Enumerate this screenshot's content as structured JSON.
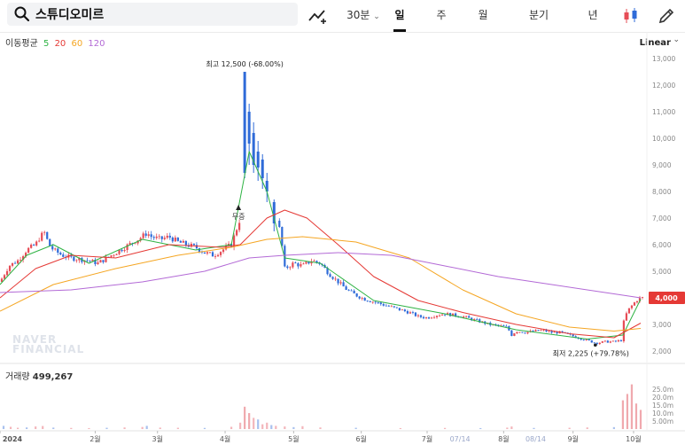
{
  "toolbar": {
    "search_value": "스튜디오미르",
    "interval": "30분",
    "periods": [
      "일",
      "주",
      "월",
      "분기",
      "년"
    ],
    "active_period": "일",
    "icons": [
      "search-icon",
      "drawing-trend-icon",
      "chevron-down-icon",
      "candle-type-icon",
      "pencil-icon"
    ]
  },
  "ma_legend": {
    "label": "이동평균",
    "periods": [
      {
        "label": "5",
        "color": "#2fb344"
      },
      {
        "label": "20",
        "color": "#e53935"
      },
      {
        "label": "60",
        "color": "#f5a623"
      },
      {
        "label": "120",
        "color": "#b36ad6"
      }
    ]
  },
  "scale": {
    "label": "Linear",
    "icon": "chevron-down-icon"
  },
  "volume": {
    "title": "거래량",
    "value": "499,267"
  },
  "watermark": {
    "line1": "NAVER",
    "line2": "FINANCIAL"
  },
  "colors": {
    "up": "#e64c56",
    "down": "#2f6bd8",
    "ma5": "#2fb344",
    "ma20": "#e53935",
    "ma60": "#f5a623",
    "ma120": "#b36ad6",
    "last_price_badge": "#e53935"
  },
  "chart_data": {
    "type": "candlestick",
    "price_axis": {
      "min": 2000,
      "max": 13000,
      "ticks": [
        "13,000",
        "12,000",
        "11,000",
        "10,000",
        "9,000",
        "8,000",
        "7,000",
        "6,000",
        "5,000",
        "4,000",
        "3,000",
        "2,000"
      ]
    },
    "volume_axis": {
      "ticks": [
        "25.0m",
        "20.0m",
        "15.0m",
        "10.0m",
        "5.00m"
      ]
    },
    "x_axis": {
      "labels": [
        "2024",
        "2월",
        "3월",
        "4월",
        "5월",
        "6월",
        "7월",
        "07/14",
        "8월",
        "08/14",
        "9월",
        "10월"
      ]
    },
    "last_price": "4,000",
    "annotations": [
      {
        "text": "최고 12,500 (-68.00%)",
        "value": 12500
      },
      {
        "text": "최저 2,225 (+79.78%)",
        "value": 2225
      },
      {
        "text": "무증"
      }
    ],
    "close_path": [
      [
        0,
        4600
      ],
      [
        10,
        5200
      ],
      [
        20,
        5400
      ],
      [
        30,
        5800
      ],
      [
        40,
        6000
      ],
      [
        45,
        6300
      ],
      [
        50,
        6450
      ],
      [
        55,
        6000
      ],
      [
        60,
        5800
      ],
      [
        70,
        5600
      ],
      [
        80,
        5500
      ],
      [
        90,
        5450
      ],
      [
        100,
        5400
      ],
      [
        110,
        5300
      ],
      [
        120,
        5500
      ],
      [
        130,
        5700
      ],
      [
        140,
        5900
      ],
      [
        150,
        6100
      ],
      [
        160,
        6300
      ],
      [
        165,
        6450
      ],
      [
        170,
        6300
      ],
      [
        180,
        6200
      ],
      [
        190,
        6300
      ],
      [
        200,
        6100
      ],
      [
        210,
        6000
      ],
      [
        220,
        5900
      ],
      [
        230,
        5700
      ],
      [
        240,
        5600
      ],
      [
        250,
        5800
      ],
      [
        260,
        6000
      ],
      [
        265,
        6500
      ],
      [
        270,
        7000
      ],
      [
        275,
        9000
      ],
      [
        278,
        11000
      ],
      [
        280,
        9500
      ],
      [
        285,
        9200
      ],
      [
        290,
        9000
      ],
      [
        295,
        8500
      ],
      [
        300,
        8000
      ],
      [
        305,
        7500
      ],
      [
        310,
        7000
      ],
      [
        315,
        6500
      ],
      [
        320,
        5100
      ],
      [
        330,
        5300
      ],
      [
        340,
        5200
      ],
      [
        350,
        5400
      ],
      [
        360,
        5300
      ],
      [
        370,
        4900
      ],
      [
        380,
        4600
      ],
      [
        390,
        4300
      ],
      [
        400,
        4100
      ],
      [
        410,
        3950
      ],
      [
        420,
        3850
      ],
      [
        430,
        3750
      ],
      [
        440,
        3650
      ],
      [
        450,
        3550
      ],
      [
        460,
        3450
      ],
      [
        470,
        3300
      ],
      [
        480,
        3250
      ],
      [
        490,
        3350
      ],
      [
        500,
        3400
      ],
      [
        510,
        3350
      ],
      [
        520,
        3300
      ],
      [
        530,
        3200
      ],
      [
        540,
        3100
      ],
      [
        550,
        3000
      ],
      [
        560,
        2950
      ],
      [
        570,
        2900
      ],
      [
        575,
        2600
      ],
      [
        580,
        2750
      ],
      [
        590,
        2700
      ],
      [
        600,
        2750
      ],
      [
        610,
        2780
      ],
      [
        620,
        2700
      ],
      [
        630,
        2700
      ],
      [
        640,
        2600
      ],
      [
        650,
        2500
      ],
      [
        660,
        2400
      ],
      [
        670,
        2300
      ],
      [
        680,
        2350
      ],
      [
        690,
        2350
      ],
      [
        698,
        2400
      ],
      [
        700,
        3000
      ],
      [
        705,
        3500
      ],
      [
        710,
        3700
      ],
      [
        715,
        3900
      ],
      [
        720,
        4000
      ]
    ],
    "peak_candles": [
      {
        "day": 275,
        "open": 8700,
        "close": 12500,
        "high": 12500,
        "low": 8500
      },
      {
        "day": 280,
        "open": 11000,
        "close": 9800,
        "high": 11300,
        "low": 9000
      },
      {
        "day": 285,
        "open": 10200,
        "close": 9000,
        "high": 10600,
        "low": 8700
      },
      {
        "day": 290,
        "open": 9500,
        "close": 8900,
        "high": 9900,
        "low": 8400
      },
      {
        "day": 295,
        "open": 9200,
        "close": 8500,
        "high": 9400,
        "low": 8100
      },
      {
        "day": 300,
        "open": 8400,
        "close": 8000,
        "high": 8700,
        "low": 7600
      },
      {
        "day": 308,
        "open": 7600,
        "close": 6800,
        "high": 7700,
        "low": 6500
      }
    ],
    "ma_series": [
      {
        "name": "5",
        "color": "#2fb344",
        "points": [
          [
            0,
            4500
          ],
          [
            30,
            5600
          ],
          [
            60,
            6000
          ],
          [
            100,
            5300
          ],
          [
            160,
            6200
          ],
          [
            220,
            5800
          ],
          [
            260,
            6000
          ],
          [
            280,
            9500
          ],
          [
            300,
            8000
          ],
          [
            320,
            5500
          ],
          [
            360,
            5300
          ],
          [
            420,
            3900
          ],
          [
            500,
            3400
          ],
          [
            580,
            2800
          ],
          [
            660,
            2450
          ],
          [
            700,
            2600
          ],
          [
            720,
            3950
          ]
        ]
      },
      {
        "name": "20",
        "color": "#e53935",
        "points": [
          [
            0,
            4000
          ],
          [
            40,
            5100
          ],
          [
            80,
            5600
          ],
          [
            130,
            5500
          ],
          [
            190,
            6000
          ],
          [
            250,
            5900
          ],
          [
            270,
            6000
          ],
          [
            300,
            7000
          ],
          [
            320,
            7300
          ],
          [
            345,
            7000
          ],
          [
            380,
            6000
          ],
          [
            420,
            4800
          ],
          [
            470,
            3900
          ],
          [
            520,
            3450
          ],
          [
            580,
            3000
          ],
          [
            640,
            2650
          ],
          [
            690,
            2500
          ],
          [
            720,
            3050
          ]
        ]
      },
      {
        "name": "60",
        "color": "#f5a623",
        "points": [
          [
            0,
            3500
          ],
          [
            60,
            4500
          ],
          [
            130,
            5100
          ],
          [
            200,
            5600
          ],
          [
            260,
            5900
          ],
          [
            300,
            6200
          ],
          [
            340,
            6300
          ],
          [
            400,
            6100
          ],
          [
            460,
            5500
          ],
          [
            520,
            4300
          ],
          [
            580,
            3400
          ],
          [
            640,
            2900
          ],
          [
            690,
            2750
          ],
          [
            720,
            2850
          ]
        ]
      },
      {
        "name": "120",
        "color": "#b36ad6",
        "points": [
          [
            0,
            4200
          ],
          [
            80,
            4300
          ],
          [
            160,
            4600
          ],
          [
            230,
            5000
          ],
          [
            280,
            5500
          ],
          [
            320,
            5600
          ],
          [
            380,
            5700
          ],
          [
            440,
            5600
          ],
          [
            500,
            5200
          ],
          [
            560,
            4800
          ],
          [
            620,
            4500
          ],
          [
            680,
            4200
          ],
          [
            720,
            4000
          ]
        ]
      }
    ],
    "volume_bars": [
      {
        "day": 4,
        "value": 2.0
      },
      {
        "day": 12,
        "value": 1.4
      },
      {
        "day": 20,
        "value": 0.8
      },
      {
        "day": 30,
        "value": 1.0
      },
      {
        "day": 40,
        "value": 1.6
      },
      {
        "day": 48,
        "value": 1.9
      },
      {
        "day": 60,
        "value": 0.9
      },
      {
        "day": 80,
        "value": 0.7
      },
      {
        "day": 100,
        "value": 0.6
      },
      {
        "day": 120,
        "value": 0.8
      },
      {
        "day": 140,
        "value": 1.0
      },
      {
        "day": 160,
        "value": 1.3
      },
      {
        "day": 165,
        "value": 2.0
      },
      {
        "day": 180,
        "value": 0.9
      },
      {
        "day": 200,
        "value": 0.8
      },
      {
        "day": 230,
        "value": 0.7
      },
      {
        "day": 260,
        "value": 1.4
      },
      {
        "day": 270,
        "value": 4.0
      },
      {
        "day": 275,
        "value": 14.0
      },
      {
        "day": 280,
        "value": 10.0
      },
      {
        "day": 285,
        "value": 7.0
      },
      {
        "day": 290,
        "value": 6.0
      },
      {
        "day": 295,
        "value": 3.0
      },
      {
        "day": 300,
        "value": 4.0
      },
      {
        "day": 305,
        "value": 2.5
      },
      {
        "day": 310,
        "value": 2.0
      },
      {
        "day": 320,
        "value": 1.6
      },
      {
        "day": 330,
        "value": 1.2
      },
      {
        "day": 340,
        "value": 1.8
      },
      {
        "day": 360,
        "value": 1.0
      },
      {
        "day": 400,
        "value": 0.8
      },
      {
        "day": 450,
        "value": 0.6
      },
      {
        "day": 500,
        "value": 0.7
      },
      {
        "day": 540,
        "value": 0.6
      },
      {
        "day": 570,
        "value": 0.9
      },
      {
        "day": 575,
        "value": 1.6
      },
      {
        "day": 600,
        "value": 0.7
      },
      {
        "day": 640,
        "value": 0.8
      },
      {
        "day": 660,
        "value": 1.0
      },
      {
        "day": 690,
        "value": 1.2
      },
      {
        "day": 700,
        "value": 18.0
      },
      {
        "day": 705,
        "value": 22.0
      },
      {
        "day": 710,
        "value": 28.0
      },
      {
        "day": 715,
        "value": 16.0
      },
      {
        "day": 720,
        "value": 12.0
      }
    ]
  }
}
